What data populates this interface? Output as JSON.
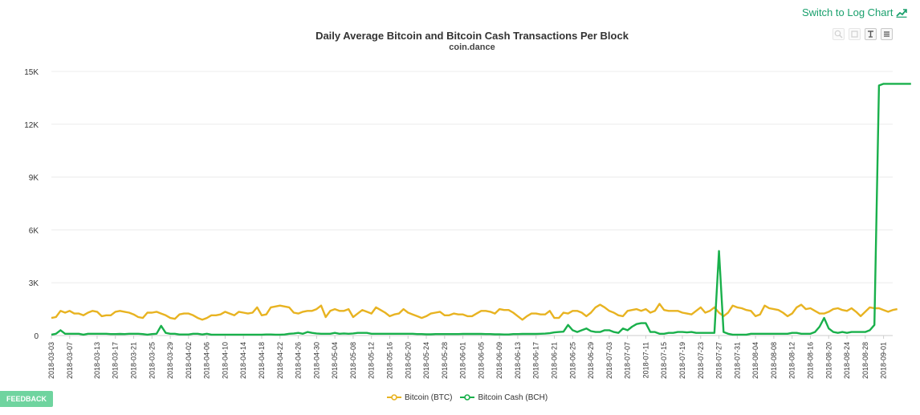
{
  "header": {
    "log_switch_label": "Switch to Log Chart"
  },
  "toolbar": {
    "icons": [
      "zoom-in-icon",
      "zoom-reset-icon",
      "data-point-icon",
      "menu-icon"
    ]
  },
  "feedback": {
    "label": "FEEDBACK"
  },
  "colors": {
    "btc": "#e8b321",
    "bch": "#19b04b",
    "grid": "#ececec",
    "axis_text": "#333333"
  },
  "chart_data": {
    "type": "line",
    "title": "Daily Average Bitcoin and Bitcoin Cash Transactions Per Block",
    "subtitle": "coin.dance",
    "xlabel": "",
    "ylabel": "",
    "ylim": [
      0,
      15000
    ],
    "yticks": [
      0,
      3000,
      6000,
      9000,
      12000,
      15000
    ],
    "ytick_labels": [
      "0",
      "3K",
      "6K",
      "9K",
      "12K",
      "15K"
    ],
    "x_start": "2018-03-03",
    "x_end": "2018-09-03",
    "xtick_labels": [
      "2018-03-03",
      "2018-03-07",
      "2018-03-13",
      "2018-03-17",
      "2018-03-21",
      "2018-03-25",
      "2018-03-29",
      "2018-04-02",
      "2018-04-06",
      "2018-04-10",
      "2018-04-14",
      "2018-04-18",
      "2018-04-22",
      "2018-04-26",
      "2018-04-30",
      "2018-05-04",
      "2018-05-08",
      "2018-05-12",
      "2018-05-16",
      "2018-05-20",
      "2018-05-24",
      "2018-05-28",
      "2018-06-01",
      "2018-06-05",
      "2018-06-09",
      "2018-06-13",
      "2018-06-17",
      "2018-06-21",
      "2018-06-25",
      "2018-06-29",
      "2018-07-03",
      "2018-07-07",
      "2018-07-11",
      "2018-07-15",
      "2018-07-19",
      "2018-07-23",
      "2018-07-27",
      "2018-07-31",
      "2018-08-04",
      "2018-08-08",
      "2018-08-12",
      "2018-08-16",
      "2018-08-20",
      "2018-08-24",
      "2018-08-28",
      "2018-09-01"
    ],
    "legend_position": "bottom-center",
    "grid": true,
    "series": [
      {
        "name": "Bitcoin (BTC)",
        "color": "#e8b321",
        "values": [
          1000,
          1050,
          1400,
          1300,
          1400,
          1250,
          1250,
          1150,
          1300,
          1400,
          1350,
          1100,
          1150,
          1150,
          1350,
          1400,
          1350,
          1300,
          1200,
          1050,
          1000,
          1300,
          1300,
          1350,
          1250,
          1150,
          1000,
          950,
          1200,
          1250,
          1250,
          1150,
          1000,
          900,
          1000,
          1150,
          1150,
          1200,
          1350,
          1250,
          1150,
          1350,
          1300,
          1250,
          1300,
          1600,
          1150,
          1200,
          1600,
          1650,
          1700,
          1650,
          1600,
          1300,
          1250,
          1350,
          1400,
          1400,
          1500,
          1700,
          1050,
          1400,
          1500,
          1400,
          1400,
          1500,
          1050,
          1250,
          1450,
          1350,
          1250,
          1600,
          1450,
          1300,
          1100,
          1200,
          1250,
          1500,
          1300,
          1200,
          1100,
          1000,
          1100,
          1250,
          1300,
          1350,
          1150,
          1150,
          1250,
          1200,
          1200,
          1100,
          1100,
          1250,
          1400,
          1400,
          1350,
          1250,
          1500,
          1450,
          1450,
          1300,
          1100,
          900,
          1100,
          1250,
          1250,
          1200,
          1200,
          1400,
          1000,
          1000,
          1300,
          1250,
          1400,
          1400,
          1300,
          1100,
          1300,
          1600,
          1750,
          1600,
          1400,
          1300,
          1150,
          1100,
          1400,
          1450,
          1500,
          1400,
          1500,
          1300,
          1400,
          1800,
          1450,
          1400,
          1400,
          1400,
          1300,
          1250,
          1200,
          1400,
          1600,
          1300,
          1400,
          1600,
          1300,
          1100,
          1300,
          1700,
          1600,
          1550,
          1450,
          1400,
          1100,
          1200,
          1700,
          1550,
          1500,
          1450,
          1300,
          1100,
          1250,
          1600,
          1750,
          1500,
          1550,
          1400,
          1250,
          1250,
          1350,
          1500,
          1550,
          1450,
          1400,
          1550,
          1350,
          1100,
          1350,
          1600,
          1550,
          1550,
          1450,
          1350,
          1450,
          1500
        ]
      },
      {
        "name": "Bitcoin Cash (BCH)",
        "color": "#19b04b",
        "values": [
          50,
          100,
          300,
          100,
          100,
          100,
          100,
          50,
          100,
          100,
          100,
          100,
          100,
          80,
          80,
          90,
          80,
          100,
          100,
          100,
          80,
          50,
          80,
          100,
          550,
          150,
          100,
          100,
          60,
          60,
          60,
          100,
          100,
          60,
          100,
          50,
          50,
          50,
          50,
          50,
          50,
          50,
          50,
          50,
          50,
          50,
          50,
          60,
          60,
          50,
          50,
          60,
          100,
          120,
          150,
          100,
          200,
          150,
          120,
          100,
          100,
          100,
          150,
          100,
          120,
          100,
          120,
          150,
          150,
          150,
          100,
          100,
          100,
          100,
          100,
          100,
          100,
          100,
          100,
          100,
          80,
          80,
          70,
          70,
          80,
          80,
          80,
          80,
          80,
          80,
          90,
          90,
          90,
          90,
          90,
          80,
          80,
          70,
          70,
          60,
          60,
          80,
          80,
          90,
          90,
          90,
          90,
          100,
          110,
          130,
          180,
          200,
          220,
          600,
          300,
          200,
          300,
          400,
          250,
          200,
          200,
          300,
          300,
          200,
          150,
          400,
          300,
          500,
          650,
          700,
          700,
          200,
          200,
          100,
          100,
          150,
          150,
          200,
          200,
          180,
          200,
          150,
          150,
          150,
          150,
          150,
          4800,
          200,
          100,
          50,
          50,
          50,
          50,
          100,
          100,
          100,
          100,
          100,
          100,
          100,
          100,
          100,
          150,
          150,
          100,
          100,
          100,
          200,
          500,
          1000,
          400,
          200,
          150,
          200,
          150,
          200,
          200,
          200,
          200,
          300,
          600,
          14200,
          14300,
          14300,
          14300,
          14300,
          14300,
          14300,
          14300
        ]
      }
    ]
  }
}
